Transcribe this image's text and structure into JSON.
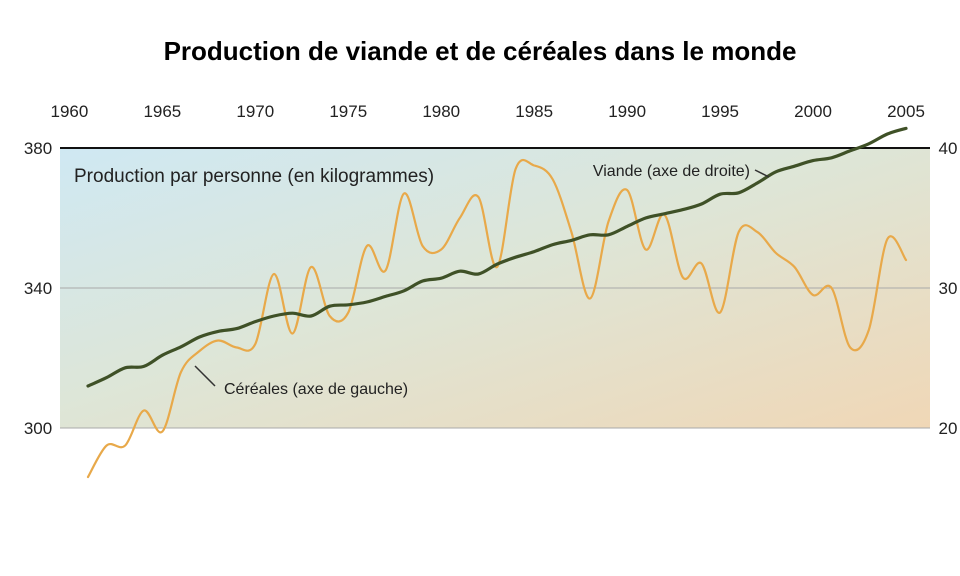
{
  "chart_data": {
    "type": "line",
    "title": "Production de viande et de céréales dans le monde",
    "subtitle": "Production par personne (en kilogrammes)",
    "x_ticks": [
      "1960",
      "1965",
      "1970",
      "1975",
      "1980",
      "1985",
      "1990",
      "1995",
      "2000",
      "2005"
    ],
    "xlim": [
      1960,
      2005
    ],
    "left_axis": {
      "ticks": [
        "300",
        "340",
        "380"
      ],
      "range": [
        300,
        380
      ]
    },
    "right_axis": {
      "ticks": [
        "20",
        "30",
        "40"
      ],
      "range": [
        20,
        40
      ]
    },
    "grid": "horizontal",
    "series": [
      {
        "name": "Céréales (axe de gauche)",
        "axis": "left",
        "color": "#e8a94a",
        "x": [
          1961,
          1962,
          1963,
          1964,
          1965,
          1966,
          1967,
          1968,
          1969,
          1970,
          1971,
          1972,
          1973,
          1974,
          1975,
          1976,
          1977,
          1978,
          1979,
          1980,
          1981,
          1982,
          1983,
          1984,
          1985,
          1986,
          1987,
          1988,
          1989,
          1990,
          1991,
          1992,
          1993,
          1994,
          1995,
          1996,
          1997,
          1998,
          1999,
          2000,
          2001,
          2002,
          2003,
          2004,
          2005
        ],
        "values": [
          286,
          295,
          295,
          305,
          299,
          316,
          322,
          325,
          323,
          324,
          344,
          327,
          346,
          332,
          333,
          352,
          345,
          367,
          352,
          351,
          360,
          366,
          346,
          374,
          375,
          371,
          356,
          337,
          359,
          368,
          351,
          361,
          343,
          347,
          333,
          356,
          356,
          350,
          346,
          338,
          340,
          323,
          328,
          354,
          348
        ]
      },
      {
        "name": "Viande (axe de droite)",
        "axis": "right",
        "color": "#3f5127",
        "x": [
          1961,
          1962,
          1963,
          1964,
          1965,
          1966,
          1967,
          1968,
          1969,
          1970,
          1971,
          1972,
          1973,
          1974,
          1975,
          1976,
          1977,
          1978,
          1979,
          1980,
          1981,
          1982,
          1983,
          1984,
          1985,
          1986,
          1987,
          1988,
          1989,
          1990,
          1991,
          1992,
          1993,
          1994,
          1995,
          1996,
          1997,
          1998,
          1999,
          2000,
          2001,
          2002,
          2003,
          2004,
          2005
        ],
        "values": [
          23.0,
          23.6,
          24.3,
          24.4,
          25.2,
          25.8,
          26.5,
          26.9,
          27.1,
          27.6,
          28.0,
          28.2,
          28.0,
          28.7,
          28.8,
          29.0,
          29.4,
          29.8,
          30.5,
          30.7,
          31.2,
          31.0,
          31.7,
          32.2,
          32.6,
          33.1,
          33.4,
          33.8,
          33.8,
          34.4,
          35.0,
          35.3,
          35.6,
          36.0,
          36.7,
          36.8,
          37.5,
          38.3,
          38.7,
          39.1,
          39.3,
          39.8,
          40.3,
          41.0,
          41.4
        ]
      }
    ],
    "annotations": [
      {
        "text": "Viande (axe de droite)",
        "series": "Viande (axe de droite)"
      },
      {
        "text": "Céréales (axe de gauche)",
        "series": "Céréales (axe de gauche)"
      }
    ]
  }
}
